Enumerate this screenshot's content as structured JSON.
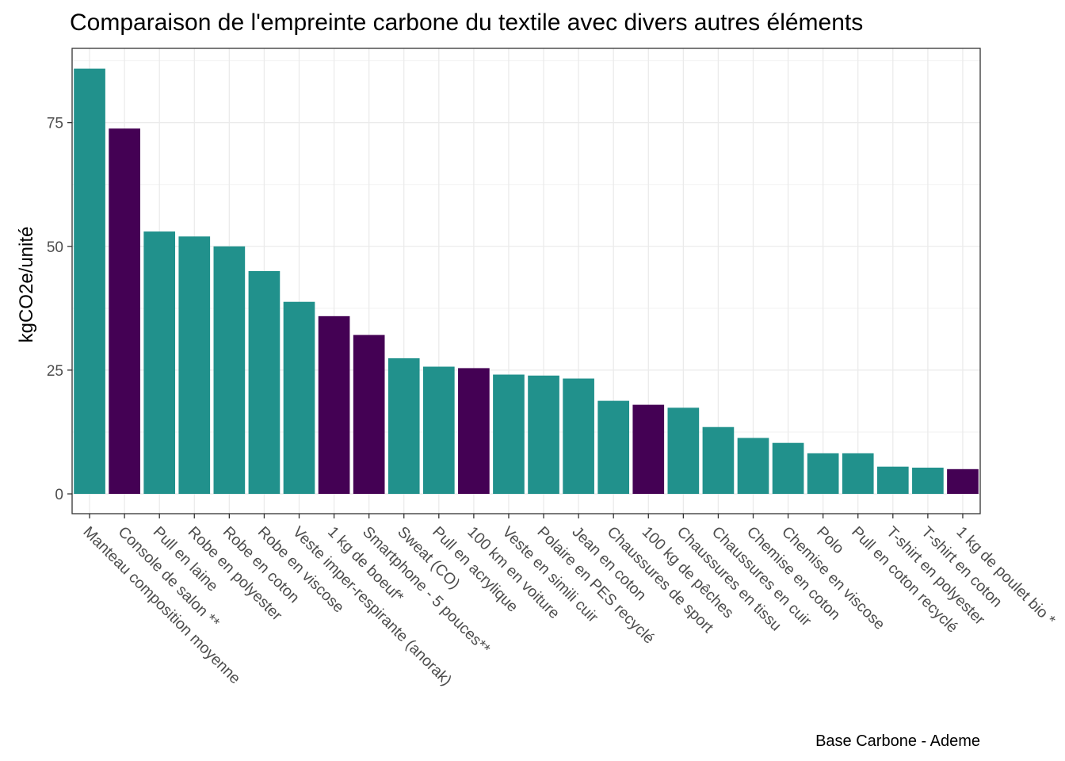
{
  "chart_data": {
    "type": "bar",
    "title": "Comparaison de l'empreinte carbone du textile avec divers autres éléments",
    "xlabel": "",
    "ylabel": "kgCO2e/unité",
    "caption": "Base Carbone - Ademe",
    "ylim": [
      -4,
      90
    ],
    "yticks": [
      0,
      25,
      50,
      75
    ],
    "grid": true,
    "legend": "none",
    "colors": {
      "textile": "#21918c",
      "other": "#440154"
    },
    "categories": [
      "Manteau composition moyenne",
      "Console de salon **",
      "Pull en laine",
      "Robe en polyester",
      "Robe en coton",
      "Robe en viscose",
      "Veste imper-respirante (anorak)",
      "1 kg de boeuf*",
      "Smartphone - 5 pouces**",
      "Sweat (CO)",
      "Pull en acrylique",
      "100 km en voiture",
      "Veste en simili cuir",
      "Polaire en PES recyclé",
      "Jean en coton",
      "Chaussures de sport",
      "100 kg de pêches",
      "Chaussures en tissu",
      "Chaussures en cuir",
      "Chemise en coton",
      "Chemise en viscose",
      "Polo",
      "Pull en coton recyclé",
      "T-shirt en polyester",
      "T-shirt en coton",
      "1 kg de poulet bio *"
    ],
    "values": [
      85.9,
      73.8,
      53.0,
      52.0,
      50.0,
      45.0,
      38.8,
      35.9,
      32.1,
      27.4,
      25.7,
      25.4,
      24.1,
      23.9,
      23.3,
      18.8,
      18.0,
      17.4,
      13.5,
      11.3,
      10.3,
      8.2,
      8.2,
      5.5,
      5.3,
      5.0
    ],
    "groups": [
      "textile",
      "other",
      "textile",
      "textile",
      "textile",
      "textile",
      "textile",
      "other",
      "other",
      "textile",
      "textile",
      "other",
      "textile",
      "textile",
      "textile",
      "textile",
      "other",
      "textile",
      "textile",
      "textile",
      "textile",
      "textile",
      "textile",
      "textile",
      "textile",
      "other"
    ]
  }
}
